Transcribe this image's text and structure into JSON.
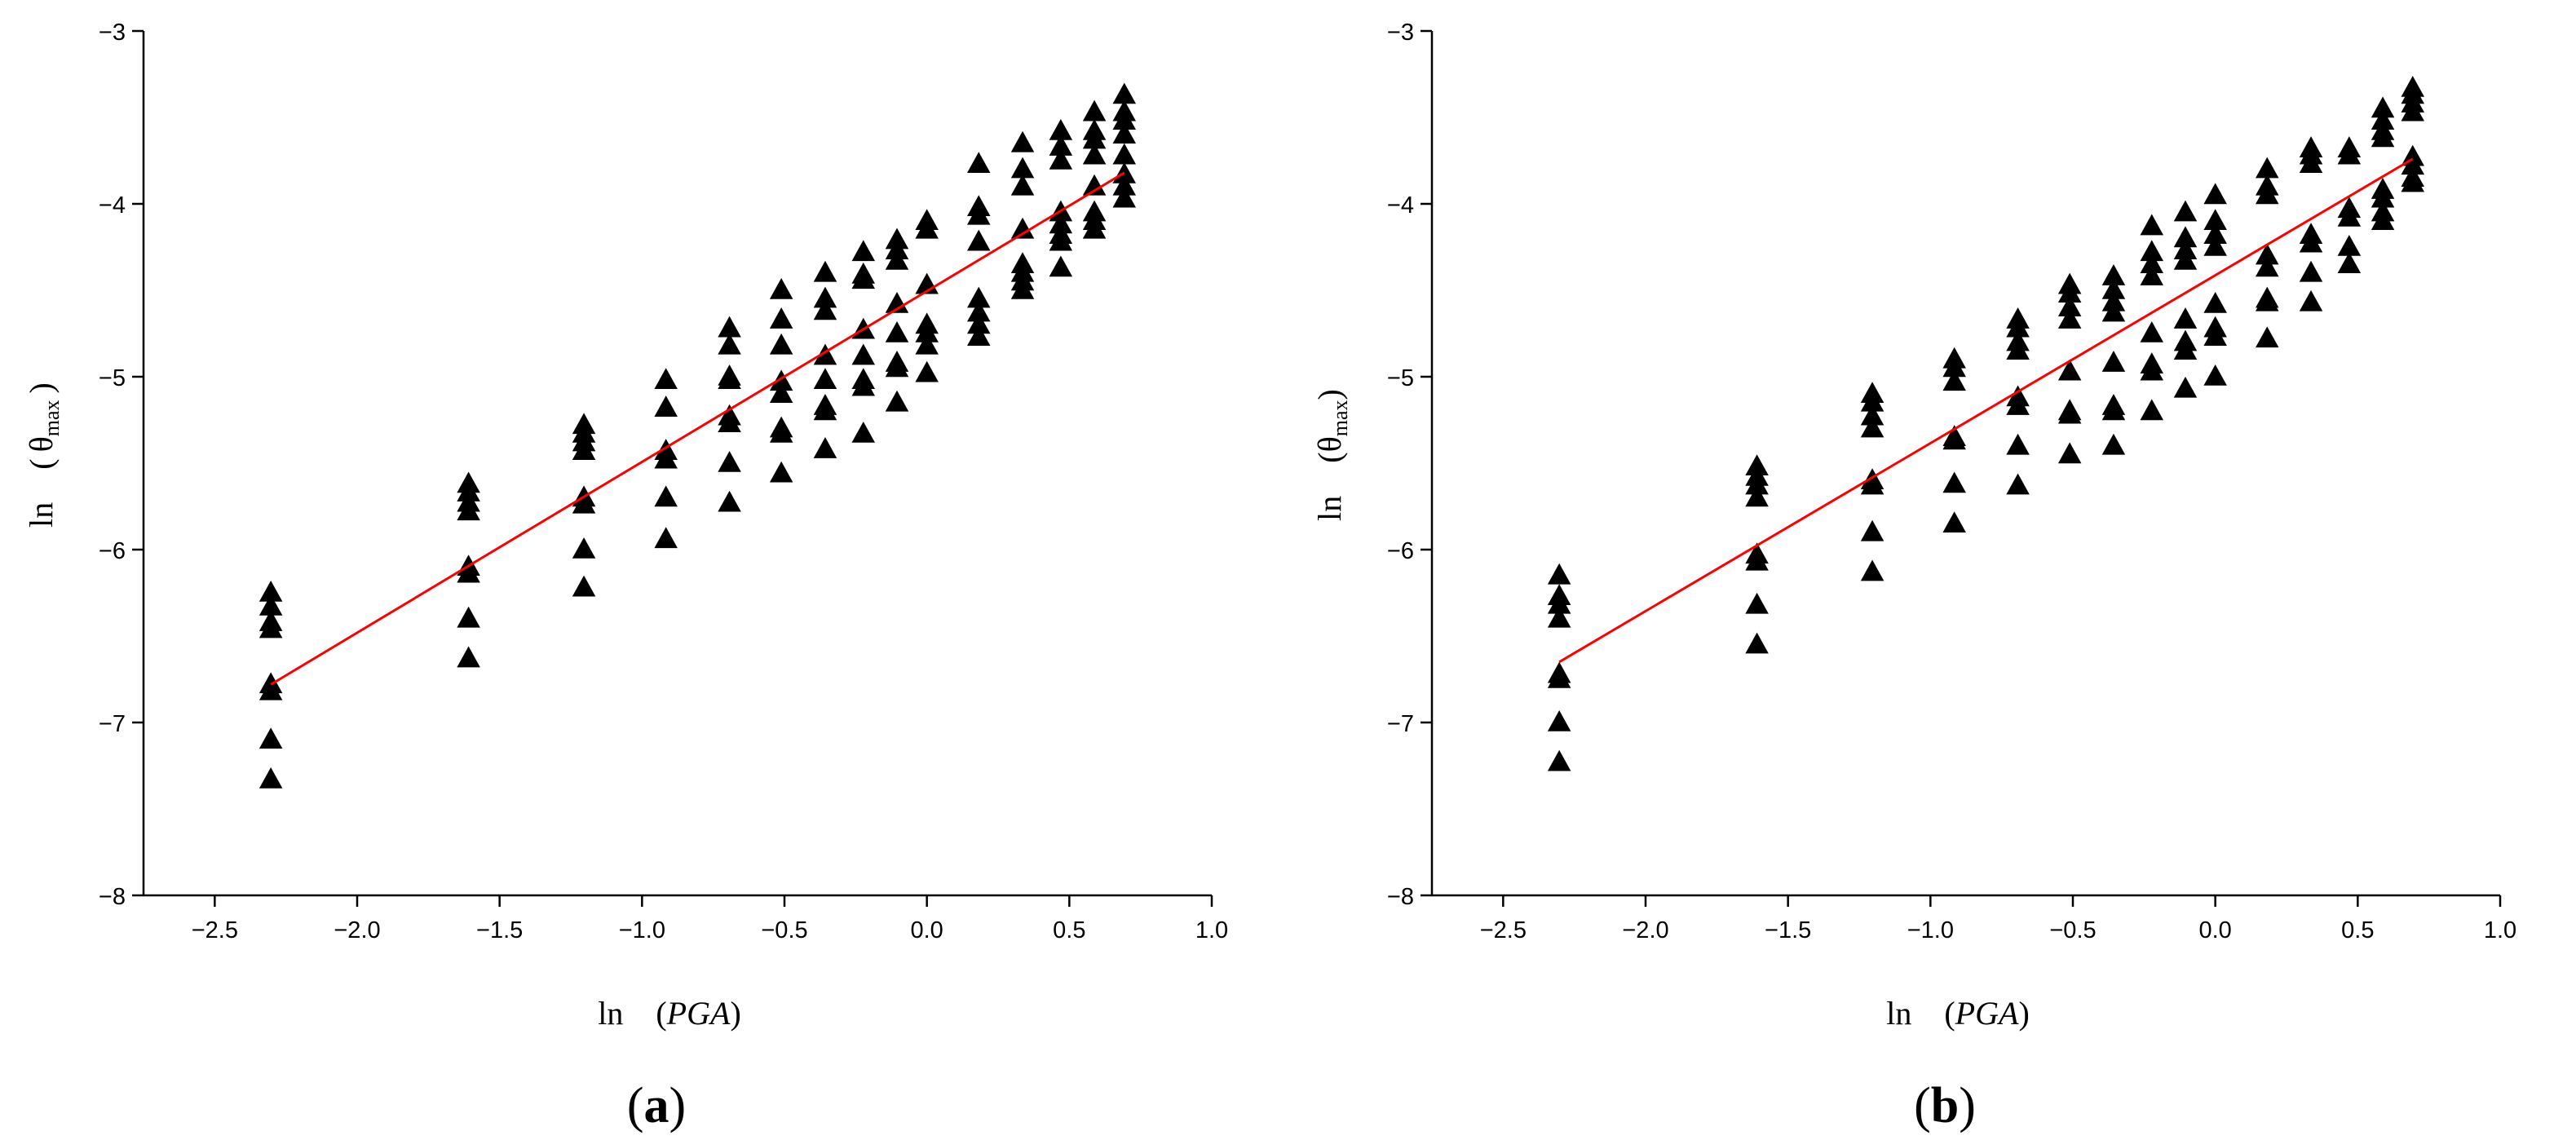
{
  "chart_data": [
    {
      "panel": "a",
      "panel_label_open": "(",
      "panel_label_letter": "a",
      "panel_label_close": ")",
      "type": "scatter",
      "xlabel_prefix": "ln　(",
      "xlabel_var": "PGA",
      "xlabel_suffix": ")",
      "ylabel_prefix": "ln　( θ",
      "ylabel_sub": "max",
      "ylabel_suffix": " )",
      "xlim": [
        -2.75,
        1.0
      ],
      "ylim": [
        -8,
        -3
      ],
      "xticks": [
        -2.5,
        -2.0,
        -1.5,
        -1.0,
        -0.5,
        0.0,
        0.5,
        1.0
      ],
      "xtick_labels": [
        "−2.5",
        "−2.0",
        "−1.5",
        "−1.0",
        "−0.5",
        "0.0",
        "0.5",
        "1.0"
      ],
      "yticks": [
        -8,
        -7,
        -6,
        -5,
        -4,
        -3
      ],
      "ytick_labels": [
        "−8",
        "−7",
        "−6",
        "−5",
        "−4",
        "−3"
      ],
      "marker": "triangle",
      "marker_color": "#000000",
      "fit_color": "#ff0000",
      "fit_line": [
        [
          -2.303,
          -6.78
        ],
        [
          0.693,
          -3.82
        ]
      ],
      "groups": [
        {
          "x": -2.303,
          "y": [
            -6.25,
            -6.33,
            -6.42,
            -6.46,
            -6.78,
            -6.82,
            -7.1,
            -7.33
          ]
        },
        {
          "x": -1.609,
          "y": [
            -5.62,
            -5.67,
            -5.73,
            -5.78,
            -6.1,
            -6.14,
            -6.4,
            -6.63
          ]
        },
        {
          "x": -1.204,
          "y": [
            -5.28,
            -5.33,
            -5.38,
            -5.43,
            -5.7,
            -5.74,
            -6.0,
            -6.22
          ]
        },
        {
          "x": -0.916,
          "y": [
            -5.02,
            -5.18,
            -5.43,
            -5.48,
            -5.7,
            -5.94
          ]
        },
        {
          "x": -0.693,
          "y": [
            -4.72,
            -4.82,
            -5.0,
            -5.02,
            -5.23,
            -5.27,
            -5.5,
            -5.73
          ]
        },
        {
          "x": -0.511,
          "y": [
            -4.5,
            -4.67,
            -4.82,
            -5.03,
            -5.1,
            -5.3,
            -5.33,
            -5.56
          ]
        },
        {
          "x": -0.357,
          "y": [
            -4.4,
            -4.55,
            -4.62,
            -4.88,
            -5.02,
            -5.17,
            -5.2,
            -5.42
          ]
        },
        {
          "x": -0.223,
          "y": [
            -4.28,
            -4.41,
            -4.44,
            -4.73,
            -4.88,
            -5.02,
            -5.06,
            -5.33
          ]
        },
        {
          "x": -0.105,
          "y": [
            -4.21,
            -4.27,
            -4.33,
            -4.58,
            -4.75,
            -4.92,
            -4.95,
            -5.15
          ]
        },
        {
          "x": 0.0,
          "y": [
            -4.1,
            -4.15,
            -4.47,
            -4.7,
            -4.75,
            -4.82,
            -4.98
          ]
        },
        {
          "x": 0.182,
          "y": [
            -3.77,
            -4.02,
            -4.07,
            -4.22,
            -4.55,
            -4.63,
            -4.7,
            -4.77
          ]
        },
        {
          "x": 0.336,
          "y": [
            -3.65,
            -3.8,
            -3.9,
            -4.15,
            -4.35,
            -4.4,
            -4.45,
            -4.5
          ]
        },
        {
          "x": 0.47,
          "y": [
            -3.58,
            -3.67,
            -3.75,
            -4.05,
            -4.12,
            -4.18,
            -4.22,
            -4.37
          ]
        },
        {
          "x": 0.588,
          "y": [
            -3.47,
            -3.58,
            -3.63,
            -3.72,
            -3.9,
            -4.05,
            -4.1,
            -4.15
          ]
        },
        {
          "x": 0.693,
          "y": [
            -3.37,
            -3.47,
            -3.52,
            -3.6,
            -3.72,
            -3.83,
            -3.9,
            -3.97
          ]
        }
      ]
    },
    {
      "panel": "b",
      "panel_label_open": "(",
      "panel_label_letter": "b",
      "panel_label_close": ")",
      "type": "scatter",
      "xlabel_prefix": "ln　(",
      "xlabel_var": "PGA",
      "xlabel_suffix": ")",
      "ylabel_prefix": "ln　(θ",
      "ylabel_sub": "max",
      "ylabel_suffix": ")",
      "xlim": [
        -2.75,
        1.0
      ],
      "ylim": [
        -8,
        -3
      ],
      "xticks": [
        -2.5,
        -2.0,
        -1.5,
        -1.0,
        -0.5,
        0.0,
        0.5,
        1.0
      ],
      "xtick_labels": [
        "−2.5",
        "−2.0",
        "−1.5",
        "−1.0",
        "−0.5",
        "0.0",
        "0.5",
        "1.0"
      ],
      "yticks": [
        -8,
        -7,
        -6,
        -5,
        -4,
        -3
      ],
      "ytick_labels": [
        "−8",
        "−7",
        "−6",
        "−5",
        "−4",
        "−3"
      ],
      "marker": "triangle",
      "marker_color": "#000000",
      "fit_color": "#ff0000",
      "fit_line": [
        [
          -2.303,
          -6.65
        ],
        [
          0.693,
          -3.74
        ]
      ],
      "groups": [
        {
          "x": -2.303,
          "y": [
            -6.15,
            -6.27,
            -6.32,
            -6.4,
            -6.72,
            -6.75,
            -7.0,
            -7.23
          ]
        },
        {
          "x": -1.609,
          "y": [
            -5.52,
            -5.58,
            -5.63,
            -5.7,
            -6.03,
            -6.07,
            -6.32,
            -6.55
          ]
        },
        {
          "x": -1.204,
          "y": [
            -5.1,
            -5.15,
            -5.23,
            -5.3,
            -5.6,
            -5.63,
            -5.9,
            -6.13
          ]
        },
        {
          "x": -0.916,
          "y": [
            -4.9,
            -4.95,
            -5.03,
            -5.35,
            -5.37,
            -5.62,
            -5.85
          ]
        },
        {
          "x": -0.693,
          "y": [
            -4.67,
            -4.72,
            -4.8,
            -4.85,
            -5.12,
            -5.17,
            -5.4,
            -5.63
          ]
        },
        {
          "x": -0.511,
          "y": [
            -4.47,
            -4.52,
            -4.6,
            -4.67,
            -4.97,
            -5.2,
            -5.22,
            -5.45
          ]
        },
        {
          "x": -0.357,
          "y": [
            -4.42,
            -4.5,
            -4.57,
            -4.63,
            -4.92,
            -5.17,
            -5.2,
            -5.4
          ]
        },
        {
          "x": -0.223,
          "y": [
            -4.13,
            -4.28,
            -4.35,
            -4.42,
            -4.75,
            -4.93,
            -4.97,
            -5.2
          ]
        },
        {
          "x": -0.105,
          "y": [
            -4.05,
            -4.2,
            -4.27,
            -4.33,
            -4.67,
            -4.8,
            -4.85,
            -5.07
          ]
        },
        {
          "x": 0.0,
          "y": [
            -3.95,
            -4.1,
            -4.18,
            -4.25,
            -4.58,
            -4.72,
            -4.77,
            -5.0
          ]
        },
        {
          "x": 0.182,
          "y": [
            -3.8,
            -3.9,
            -3.95,
            -4.3,
            -4.37,
            -4.55,
            -4.57,
            -4.78
          ]
        },
        {
          "x": 0.336,
          "y": [
            -3.68,
            -3.72,
            -3.77,
            -4.18,
            -4.23,
            -4.4,
            -4.57
          ]
        },
        {
          "x": 0.47,
          "y": [
            -3.68,
            -3.72,
            -4.03,
            -4.08,
            -4.25,
            -4.35
          ]
        },
        {
          "x": 0.588,
          "y": [
            -3.45,
            -3.52,
            -3.58,
            -3.62,
            -3.92,
            -3.97,
            -4.05,
            -4.1
          ]
        },
        {
          "x": 0.693,
          "y": [
            -3.33,
            -3.37,
            -3.42,
            -3.47,
            -3.73,
            -3.78,
            -3.85,
            -3.88
          ]
        }
      ]
    }
  ]
}
